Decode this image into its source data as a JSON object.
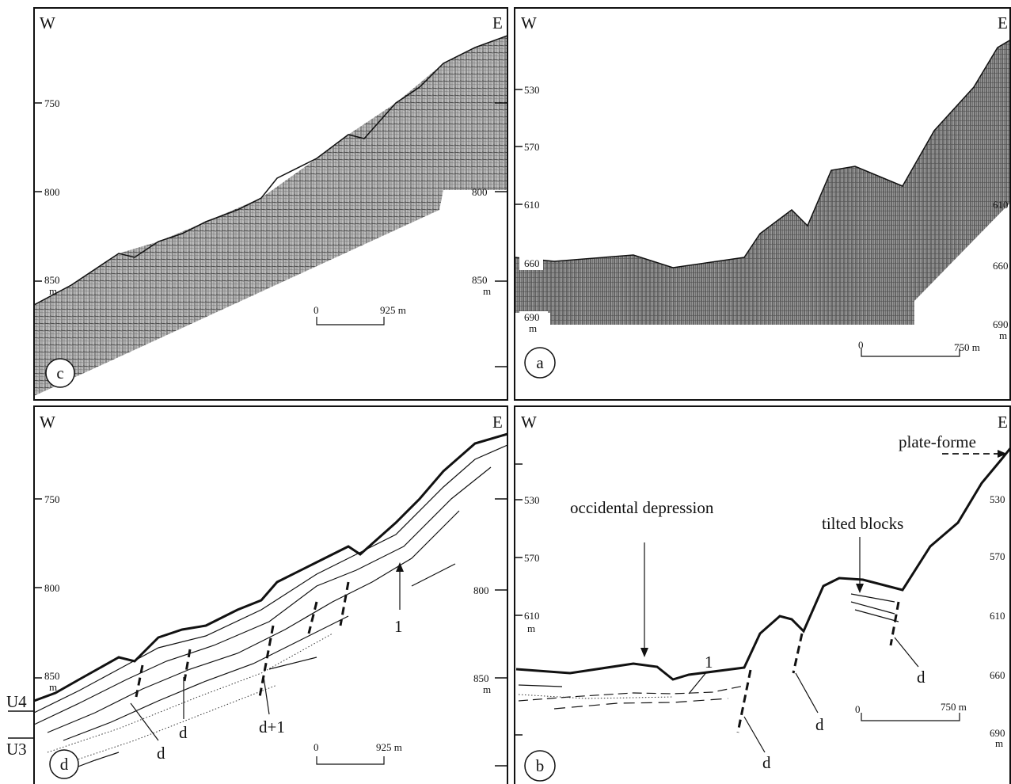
{
  "panels": [
    {
      "label": "c",
      "west": "W",
      "east": "E",
      "left_scale": [
        "750",
        "800",
        "850",
        "m"
      ],
      "right_scale": [
        "800",
        "850",
        "m"
      ],
      "scale_bar": [
        "0",
        "925 m"
      ]
    },
    {
      "label": "a",
      "west": "W",
      "east": "E",
      "left_scale": [
        "530",
        "570",
        "610",
        "660",
        "690",
        "m"
      ],
      "right_scale": [
        "610",
        "660",
        "690",
        "m"
      ],
      "scale_bar": [
        "0",
        "750 m"
      ]
    },
    {
      "label": "d",
      "west": "W",
      "east": "E",
      "left_scale": [
        "750",
        "800",
        "850",
        "m"
      ],
      "right_scale": [
        "800",
        "850",
        "m"
      ],
      "scale_bar": [
        "0",
        "925 m"
      ],
      "annotations": [
        "1",
        "d",
        "d",
        "d+1",
        "d"
      ],
      "units": [
        "U4",
        "U3"
      ]
    },
    {
      "label": "b",
      "west": "W",
      "east": "E",
      "left_scale": [
        "530",
        "570",
        "610",
        "m"
      ],
      "right_scale": [
        "530",
        "570",
        "610",
        "660",
        "690",
        "m"
      ],
      "scale_bar": [
        "0",
        "750 m"
      ],
      "annotations": [
        "plate-forme",
        "occidental depression",
        "tilted blocks",
        "1",
        "d",
        "d",
        "d"
      ]
    }
  ]
}
